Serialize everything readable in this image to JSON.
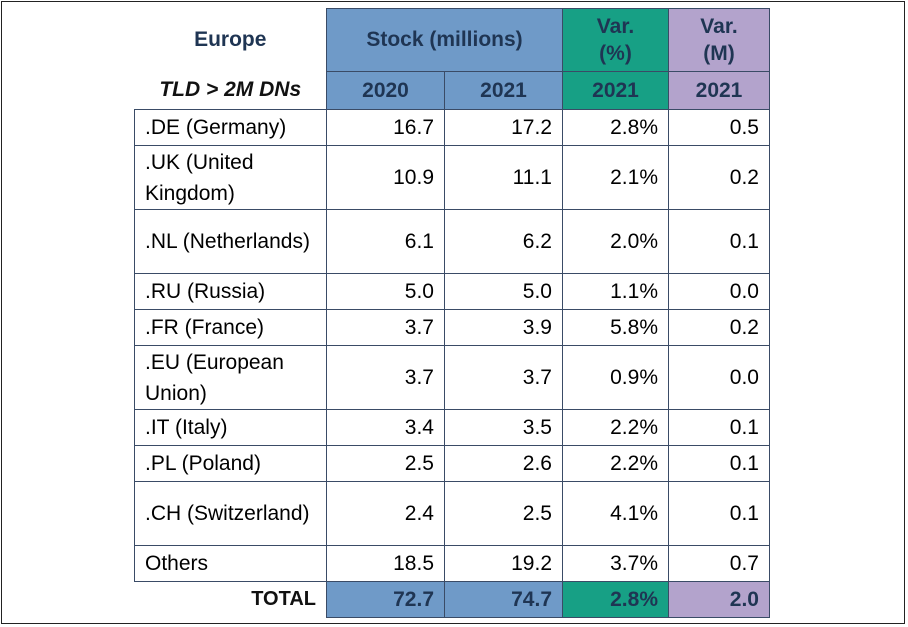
{
  "header": {
    "region": "Europe",
    "subtitle": "TLD > 2M DNs",
    "stock_label": "Stock (millions)",
    "var_pct_label_line1": "Var.",
    "var_pct_label_line2": "(%)",
    "var_m_label_line1": "Var.",
    "var_m_label_line2": "(M)",
    "year_2020": "2020",
    "year_2021": "2021",
    "var_pct_year": "2021",
    "var_m_year": "2021"
  },
  "rows": [
    {
      "tld": ".DE (Germany)",
      "s2020": "16.7",
      "s2021": "17.2",
      "var_pct": "2.8%",
      "var_m": "0.5"
    },
    {
      "tld": ".UK (United Kingdom)",
      "s2020": "10.9",
      "s2021": "11.1",
      "var_pct": "2.1%",
      "var_m": "0.2"
    },
    {
      "tld": ".NL (Netherlands)",
      "s2020": "6.1",
      "s2021": "6.2",
      "var_pct": "2.0%",
      "var_m": "0.1"
    },
    {
      "tld": ".RU (Russia)",
      "s2020": "5.0",
      "s2021": "5.0",
      "var_pct": "1.1%",
      "var_m": "0.0"
    },
    {
      "tld": ".FR (France)",
      "s2020": "3.7",
      "s2021": "3.9",
      "var_pct": "5.8%",
      "var_m": "0.2"
    },
    {
      "tld": ".EU (European Union)",
      "s2020": "3.7",
      "s2021": "3.7",
      "var_pct": "0.9%",
      "var_m": "0.0"
    },
    {
      "tld": ".IT (Italy)",
      "s2020": "3.4",
      "s2021": "3.5",
      "var_pct": "2.2%",
      "var_m": "0.1"
    },
    {
      "tld": ".PL (Poland)",
      "s2020": "2.5",
      "s2021": "2.6",
      "var_pct": "2.2%",
      "var_m": "0.1"
    },
    {
      "tld": ".CH (Switzerland)",
      "s2020": "2.4",
      "s2021": "2.5",
      "var_pct": "4.1%",
      "var_m": "0.1"
    },
    {
      "tld": "Others",
      "s2020": "18.5",
      "s2021": "19.2",
      "var_pct": "3.7%",
      "var_m": "0.7"
    }
  ],
  "total": {
    "label": "TOTAL",
    "s2020": "72.7",
    "s2021": "74.7",
    "var_pct": "2.8%",
    "var_m": "2.0"
  },
  "colors": {
    "stock_header": "#6f9ac8",
    "var_pct_header": "#17a085",
    "var_m_header": "#b3a3cc",
    "header_text": "#1f3553"
  }
}
